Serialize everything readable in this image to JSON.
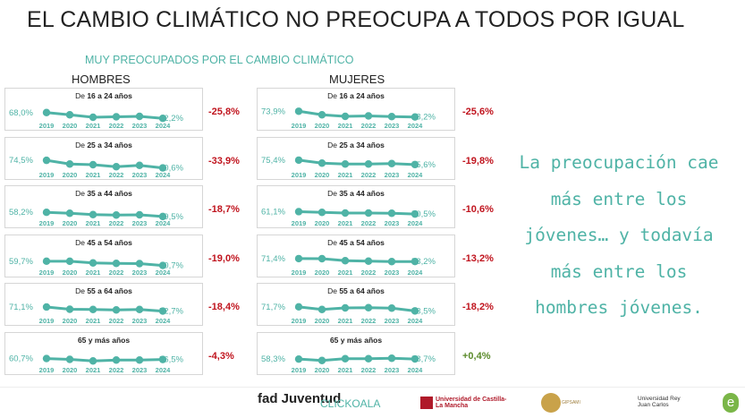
{
  "title": "EL CAMBIO CLIMÁTICO NO PREOCUPA A TODOS POR IGUAL",
  "subtitle": "MUY PREOCUPADOS POR EL CAMBIO CLIMÁTICO",
  "quote": "La preocupación cae más entre los jóvenes… y todavía más entre los hombres jóvenes.",
  "colors": {
    "accent": "#4fb3a6",
    "negative": "#c0141e",
    "positive": "#5a8a2a"
  },
  "chart_data": {
    "type": "line",
    "x": [
      "2019",
      "2020",
      "2021",
      "2022",
      "2023",
      "2024"
    ],
    "groups": [
      {
        "name": "HOMBRES",
        "panels": [
          {
            "label_pre": "De ",
            "label_bold": "16 a 24 años",
            "values": [
              68.0,
              58,
              47,
              49,
              51,
              42.2
            ],
            "change": "-25,8%",
            "first": "68,0%",
            "last": "42,2%"
          },
          {
            "label_pre": "De ",
            "label_bold": "25 a 34 años",
            "values": [
              74.5,
              58,
              55,
              46,
              52,
              40.6
            ],
            "change": "-33,9%",
            "first": "74,5%",
            "last": "40,6%"
          },
          {
            "label_pre": "De ",
            "label_bold": "35 a 44 años",
            "values": [
              58.2,
              54,
              48,
              46,
              47,
              39.5
            ],
            "change": "-18,7%",
            "first": "58,2%",
            "last": "39,5%"
          },
          {
            "label_pre": "De ",
            "label_bold": "45 a 54 años",
            "values": [
              59.7,
              59.5,
              52,
              50,
              49,
              40.7
            ],
            "change": "-19,0%",
            "first": "59,7%",
            "last": "40,7%"
          },
          {
            "label_pre": "De ",
            "label_bold": "55 a 64 años",
            "values": [
              71.1,
              61,
              60,
              58,
              60,
              52.7
            ],
            "change": "-18,4%",
            "first": "71,1%",
            "last": "52,7%"
          },
          {
            "label_pre": "",
            "label_bold": "65 y más años",
            "values": [
              60.7,
              57,
              50,
              54,
              54,
              56.5
            ],
            "change": "-4,3%",
            "first": "60,7%",
            "last": "56,5%"
          }
        ]
      },
      {
        "name": "MUJERES",
        "panels": [
          {
            "label_pre": "De ",
            "label_bold": "16 a 24 años",
            "values": [
              73.9,
              58,
              51,
              53,
              50,
              48.2
            ],
            "change": "-25,6%",
            "first": "73,9%",
            "last": "48,2%"
          },
          {
            "label_pre": "De ",
            "label_bold": "25 a 34 años",
            "values": [
              75.4,
              62,
              58,
              58,
              60,
              55.6
            ],
            "change": "-19,8%",
            "first": "75,4%",
            "last": "55,6%"
          },
          {
            "label_pre": "De ",
            "label_bold": "35 a 44 años",
            "values": [
              61.1,
              58,
              55,
              55,
              54,
              50.5
            ],
            "change": "-10,6%",
            "first": "61,1%",
            "last": "50,5%"
          },
          {
            "label_pre": "De ",
            "label_bold": "45 a 54 años",
            "values": [
              71.4,
              71,
              62,
              60,
              58,
              58.2
            ],
            "change": "-13,2%",
            "first": "71,4%",
            "last": "58,2%"
          },
          {
            "label_pre": "De ",
            "label_bold": "55 a 64 años",
            "values": [
              71.7,
              60,
              67,
              68,
              66,
              53.5
            ],
            "change": "-18,2%",
            "first": "71,7%",
            "last": "53,5%"
          },
          {
            "label_pre": "",
            "label_bold": "65 y más años",
            "values": [
              58.3,
              52,
              60,
              60,
              62,
              58.7
            ],
            "change": "+0,4%",
            "first": "58,3%",
            "last": "58,7%"
          }
        ]
      }
    ]
  },
  "footer": {
    "logos": [
      "fad Juventud",
      "CLICKOALA",
      "Universidad de Castilla-La Mancha",
      "GIPSAMI",
      "Universidad Rey Juan Carlos",
      "e"
    ]
  }
}
